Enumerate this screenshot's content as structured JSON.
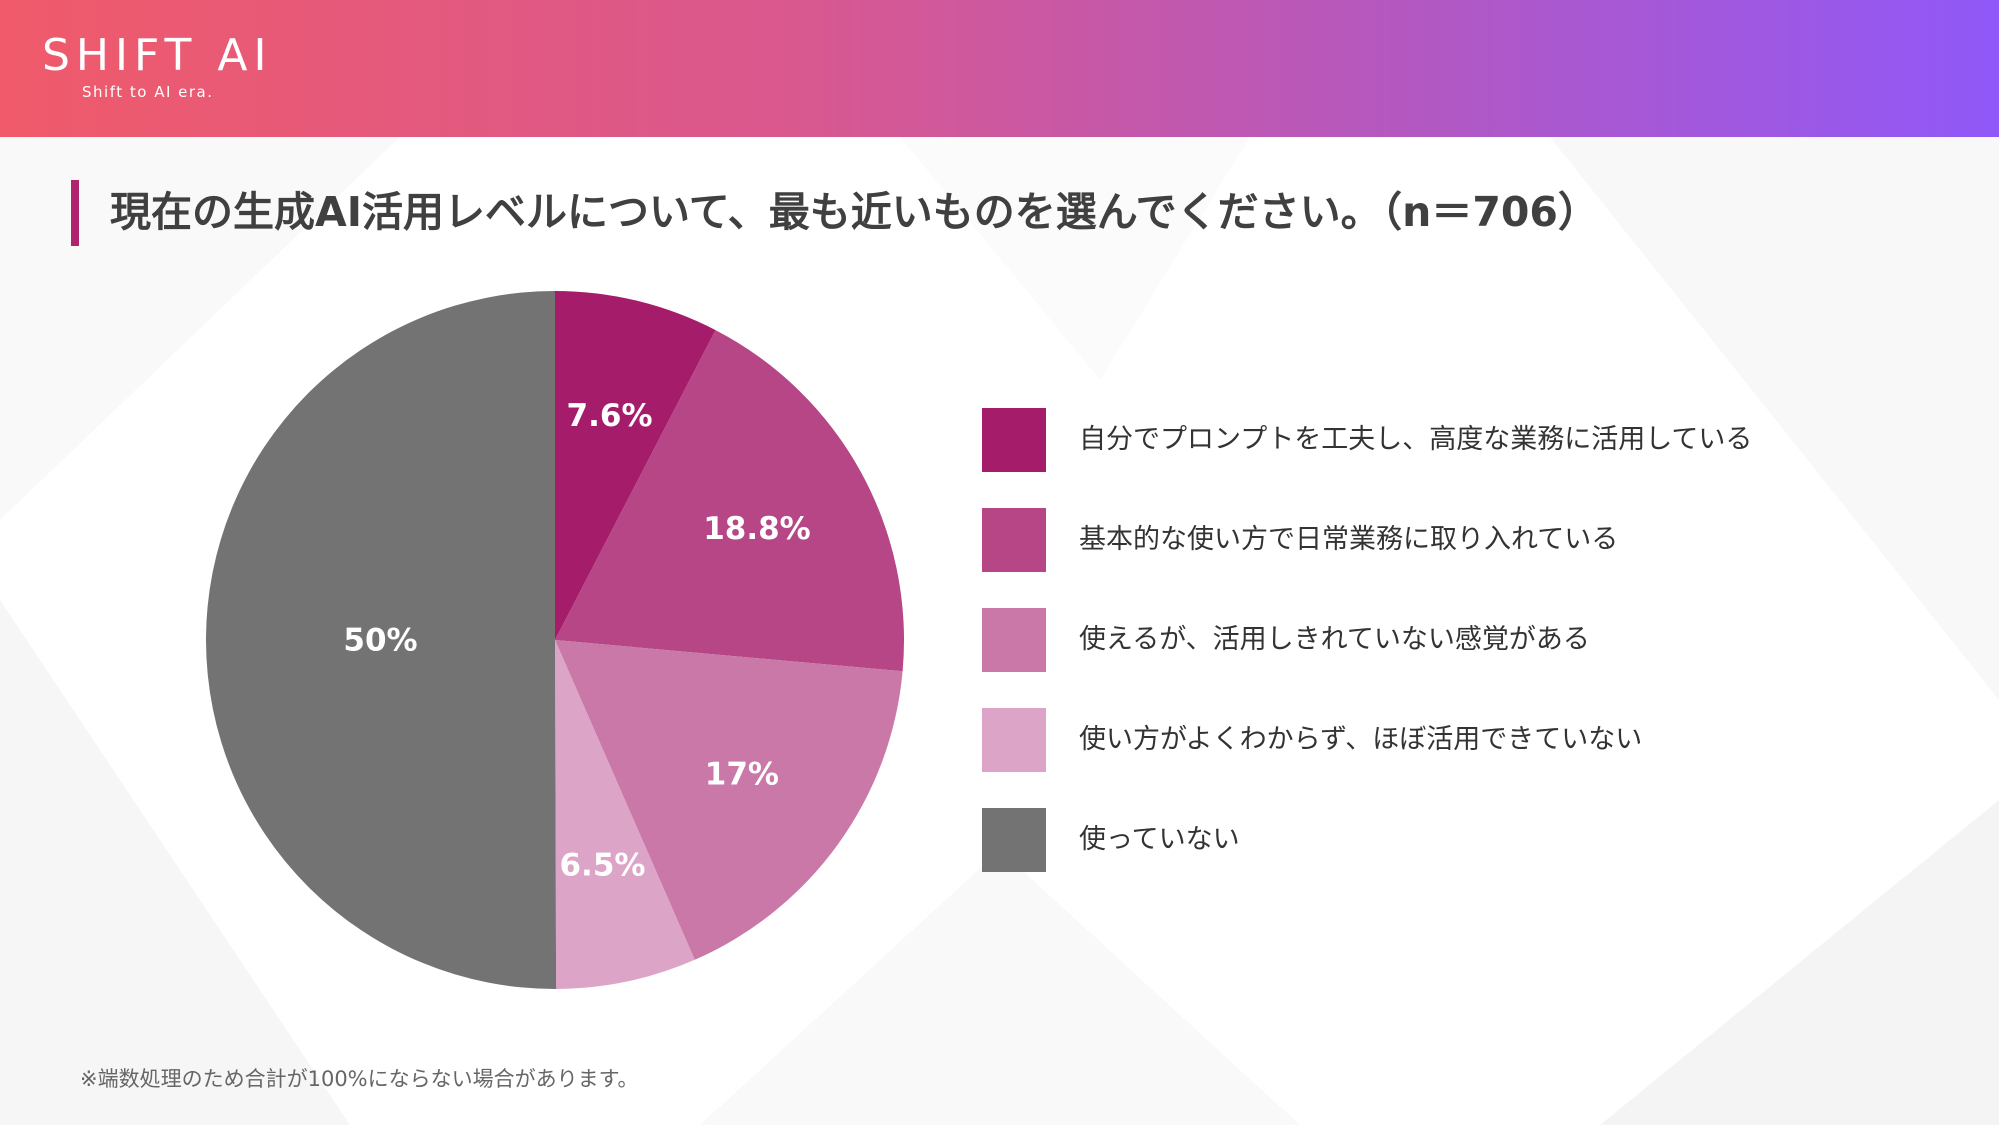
{
  "header": {
    "logo_text": "SHIFT AI",
    "logo_tagline": "Shift to AI era."
  },
  "title": "現在の生成AI活用レベルについて、最も近いものを選んでください。（n＝706）",
  "footnote": "※端数処理のため合計が100%にならない場合があります。",
  "colors": {
    "header_gradient": [
      "#f05a6a",
      "#9058f8"
    ],
    "title_accent": "#b0246e"
  },
  "chart_data": {
    "type": "pie",
    "start_angle": "12 o'clock",
    "direction": "clockwise",
    "legend_position": "right",
    "slices": [
      {
        "label": "自分でプロンプトを工夫し、高度な業務に活用している",
        "value": 7.6,
        "display": "7.6%",
        "color": "#a51c6b"
      },
      {
        "label": "基本的な使い方で日常業務に取り入れている",
        "value": 18.8,
        "display": "18.8%",
        "color": "#b64686"
      },
      {
        "label": "使えるが、活用しきれていない感覚がある",
        "value": 17,
        "display": "17%",
        "color": "#c978a8"
      },
      {
        "label": "使い方がよくわからず、ほぼ活用できていない",
        "value": 6.5,
        "display": "6.5%",
        "color": "#dca4c6"
      },
      {
        "label": "使っていない",
        "value": 50,
        "display": "50%",
        "color": "#737373"
      }
    ]
  }
}
